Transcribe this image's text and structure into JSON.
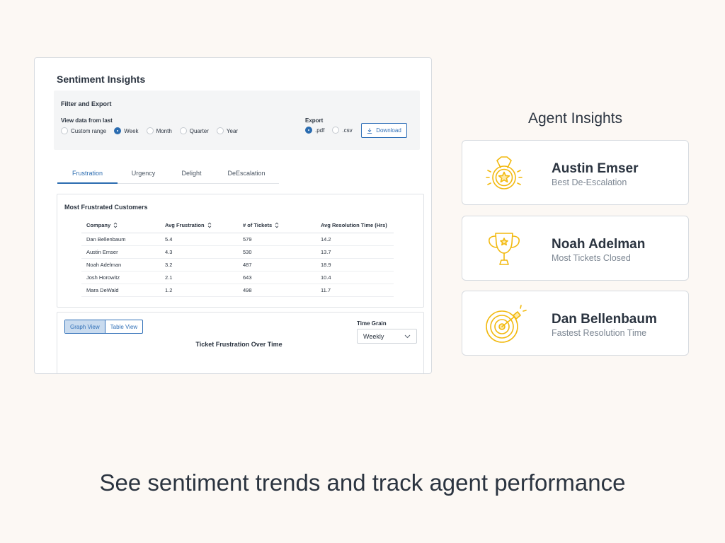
{
  "panel": {
    "title": "Sentiment Insights",
    "filter": {
      "title": "Filter and Export",
      "range_label": "View data from last",
      "range_options": [
        "Custom range",
        "Week",
        "Month",
        "Quarter",
        "Year"
      ],
      "range_selected": "Week",
      "export_label": "Export",
      "export_options": [
        ".pdf",
        ".csv"
      ],
      "export_selected": ".pdf",
      "download_label": "Download"
    },
    "tabs": [
      "Frustration",
      "Urgency",
      "Delight",
      "DeEscalation"
    ],
    "active_tab": "Frustration",
    "table": {
      "title": "Most Frustrated Customers",
      "columns": [
        "Company",
        "Avg Frustration",
        "# of Tickets",
        "Avg Resolution Time (Hrs)"
      ],
      "rows": [
        [
          "Dan Bellenbaum",
          "5.4",
          "579",
          "14.2"
        ],
        [
          "Austin Emser",
          "4.3",
          "530",
          "13.7"
        ],
        [
          "Noah Adelman",
          "3.2",
          "487",
          "18.9"
        ],
        [
          "Josh Horowitz",
          "2.1",
          "643",
          "10.4"
        ],
        [
          "Mara DeWald",
          "1.2",
          "498",
          "11.7"
        ]
      ]
    },
    "graph": {
      "views": [
        "Graph View",
        "Table View"
      ],
      "active_view": "Graph View",
      "time_grain_label": "Time Grain",
      "time_grain_value": "Weekly",
      "title": "Ticket Frustration Over Time"
    }
  },
  "agents": {
    "heading": "Agent Insights",
    "cards": [
      {
        "name": "Austin Emser",
        "award": "Best De-Escalation",
        "icon": "medal-icon"
      },
      {
        "name": "Noah Adelman",
        "award": "Most Tickets Closed",
        "icon": "trophy-icon"
      },
      {
        "name": "Dan Bellenbaum",
        "award": "Fastest Resolution Time",
        "icon": "target-icon"
      }
    ]
  },
  "tagline": "See sentiment trends and track agent performance",
  "colors": {
    "accent": "#2b6cb0",
    "award_yellow": "#f2b90f",
    "background": "#fcf8f4"
  }
}
